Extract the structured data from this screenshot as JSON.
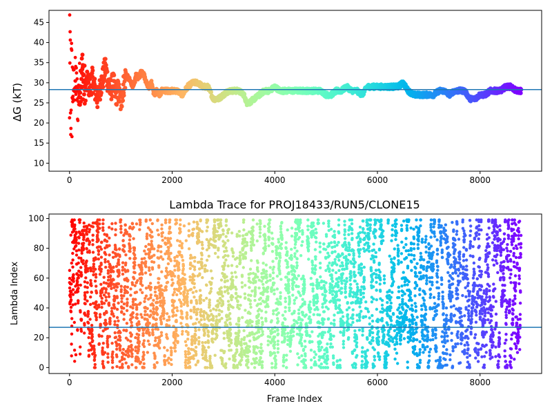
{
  "chart_data": [
    {
      "type": "scatter",
      "title": "",
      "xlabel": "",
      "ylabel": "ΔG (kT)",
      "xlim": [
        -400,
        9200
      ],
      "ylim": [
        8,
        48
      ],
      "xticks": [
        0,
        2000,
        4000,
        6000,
        8000
      ],
      "yticks": [
        10,
        15,
        20,
        25,
        30,
        35,
        40,
        45
      ],
      "xtick_labels": [
        "0",
        "2000",
        "4000",
        "6000",
        "8000"
      ],
      "ytick_labels": [
        "10",
        "15",
        "20",
        "25",
        "30",
        "35",
        "40",
        "45"
      ],
      "colormap": "rainbow (red at frame 0 → violet at last frame)",
      "grid": false,
      "hline": {
        "y": 28.3,
        "color": "#1f77b4"
      },
      "series": [
        {
          "color_by": "frame index",
          "x": [
            0,
            25,
            50,
            80,
            120,
            160,
            200,
            250,
            300,
            350,
            400,
            450,
            500,
            550,
            600,
            650,
            700,
            750,
            800,
            850,
            900,
            950,
            1000,
            1050,
            1100,
            1150,
            1200,
            1250,
            1300,
            1350,
            1400,
            1450,
            1500,
            1550,
            1600,
            1650,
            1700,
            1750,
            1800,
            1900,
            2000,
            2100,
            2200,
            2300,
            2400,
            2500,
            2600,
            2700,
            2800,
            2900,
            3000,
            3100,
            3200,
            3300,
            3400,
            3450,
            3500,
            3600,
            3700,
            3800,
            3900,
            4000,
            4100,
            4200,
            4300,
            4400,
            4500,
            4600,
            4700,
            4800,
            4900,
            5000,
            5100,
            5200,
            5300,
            5400,
            5500,
            5600,
            5700,
            5800,
            5900,
            6000,
            6100,
            6200,
            6300,
            6400,
            6500,
            6600,
            6700,
            6800,
            6900,
            7000,
            7100,
            7200,
            7300,
            7400,
            7500,
            7600,
            7700,
            7800,
            7900,
            8000,
            8100,
            8200,
            8300,
            8400,
            8500,
            8600,
            8700,
            8800
          ],
          "y": [
            30,
            33,
            27,
            29,
            31,
            25,
            30,
            33,
            28,
            30,
            29,
            31,
            28,
            26,
            29,
            31,
            34,
            30,
            28,
            30,
            27,
            28,
            25,
            29,
            32,
            31,
            30,
            29,
            32,
            31,
            33,
            32,
            30,
            29,
            30,
            27,
            28,
            27,
            28,
            28,
            28,
            28,
            27,
            29,
            30,
            30,
            29,
            29,
            26,
            26,
            27,
            28,
            28,
            28,
            27,
            25,
            25,
            26,
            27,
            28,
            28,
            29,
            28,
            28,
            28,
            28,
            28,
            28,
            28,
            28,
            28,
            27,
            27,
            28,
            28,
            29,
            28,
            28,
            27,
            29,
            29,
            29,
            29,
            29,
            29,
            29,
            30,
            28,
            27,
            27,
            27,
            27,
            27,
            28,
            28,
            27,
            28,
            28,
            28,
            26,
            26,
            27,
            27,
            28,
            28,
            28,
            29,
            29,
            28,
            28
          ]
        }
      ]
    },
    {
      "type": "scatter",
      "title": "Lambda Trace for PROJ18433/RUN5/CLONE15",
      "xlabel": "Frame Index",
      "ylabel": "Lambda Index",
      "xlim": [
        -400,
        9200
      ],
      "ylim": [
        -4,
        103
      ],
      "xticks": [
        0,
        2000,
        4000,
        6000,
        8000
      ],
      "yticks": [
        0,
        20,
        40,
        60,
        80,
        100
      ],
      "xtick_labels": [
        "0",
        "2000",
        "4000",
        "6000",
        "8000"
      ],
      "ytick_labels": [
        "0",
        "20",
        "40",
        "60",
        "80",
        "100"
      ],
      "colormap": "rainbow (red at frame 0 → violet at last frame)",
      "grid": false,
      "hline": {
        "y": 27,
        "color": "#1f77b4"
      },
      "x_range_data": [
        0,
        8800
      ],
      "y_range_data": [
        0,
        99
      ],
      "point_count_approx": 8800,
      "series": [
        {
          "color_by": "frame index",
          "distribution": "dense, roughly uniform spread of lambda 0–99 across all frames"
        }
      ]
    }
  ]
}
